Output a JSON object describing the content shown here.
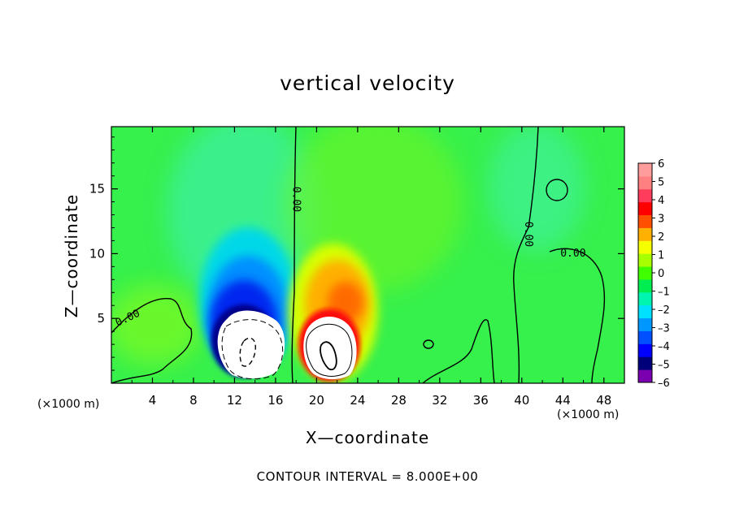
{
  "chart_data": {
    "type": "heatmap",
    "title": "vertical velocity",
    "xlabel": "X—coordinate",
    "ylabel": "Z—coordinate",
    "x_unit_label": "(×1000 m)",
    "y_unit_label": "(×1000 m)",
    "xlim": [
      0,
      50
    ],
    "ylim": [
      0,
      19.8
    ],
    "xticks": [
      4,
      8,
      12,
      16,
      20,
      24,
      28,
      32,
      36,
      40,
      44,
      48
    ],
    "yticks": [
      5,
      10,
      15
    ],
    "colorbar": {
      "ticks": [
        "6",
        "5",
        "4",
        "3",
        "2",
        "1",
        "0",
        "–1",
        "–2",
        "–3",
        "–4",
        "–5",
        "–6"
      ],
      "min": -6,
      "max": 6,
      "colors": [
        "#7a00b0",
        "#00007a",
        "#0000ff",
        "#0050ff",
        "#0098ff",
        "#00e0ff",
        "#00f5b0",
        "#00ee50",
        "#40ff00",
        "#a8ff00",
        "#f5ff00",
        "#ffb000",
        "#ff5000",
        "#ff0000",
        "#ff3c5c",
        "#ff8080",
        "#ff9c9c"
      ]
    },
    "features": [
      {
        "name": "downdraft",
        "x": 13.5,
        "z": 3.5,
        "peak": -6
      },
      {
        "name": "updraft",
        "x": 21.5,
        "z": 3.0,
        "peak": 6
      },
      {
        "name": "upper updraft lobe",
        "x": 22.5,
        "z": 6.5,
        "peak": 3
      },
      {
        "name": "upper downdraft lobe",
        "x": 14.0,
        "z": 7.0,
        "peak": -4
      }
    ],
    "contour_labels": [
      {
        "text": "0.00",
        "x": 1.6,
        "z": 5.0,
        "angle": -25
      },
      {
        "text": "0.00",
        "x": 18.0,
        "z": 14.2,
        "angle": 90
      },
      {
        "text": "0.00",
        "x": 40.6,
        "z": 11.5,
        "angle": 90
      },
      {
        "text": "0.00",
        "x": 45.0,
        "z": 10.0,
        "angle": 0
      }
    ],
    "contour_interval_text": "CONTOUR INTERVAL = 8.000E+00"
  }
}
